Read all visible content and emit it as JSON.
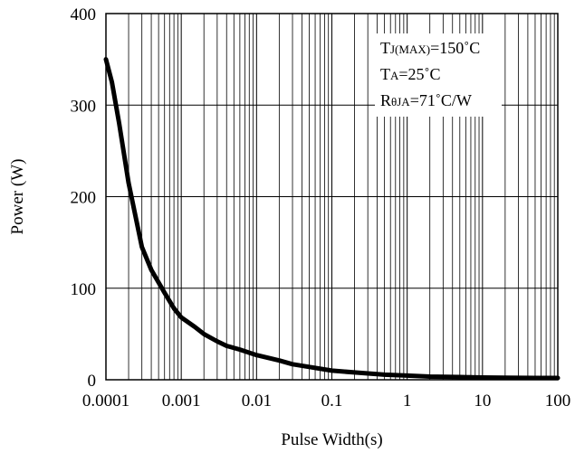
{
  "chart_data": {
    "type": "line",
    "title": "",
    "xlabel": "Pulse Width(s)",
    "ylabel": "Power (W)",
    "x_scale": "log",
    "xlim": [
      0.0001,
      100
    ],
    "ylim": [
      0,
      400
    ],
    "grid": true,
    "x_ticks": [
      "0.0001",
      "0.001",
      "0.01",
      "0.1",
      "1",
      "10",
      "100"
    ],
    "y_ticks": [
      "0",
      "100",
      "200",
      "300",
      "400"
    ],
    "annotation": {
      "lines": [
        {
          "main": "T",
          "sub": "J(MAX)",
          "rest": "=150˚C"
        },
        {
          "main": "T",
          "sub": "A",
          "rest": "=25˚C"
        },
        {
          "main": "R",
          "sub": "θJA",
          "rest": "=71˚C/W"
        }
      ]
    },
    "series": [
      {
        "x": [
          0.0001,
          0.00012,
          0.00015,
          0.0002,
          0.0003,
          0.0004,
          0.0006,
          0.0008,
          0.001,
          0.0015,
          0.002,
          0.003,
          0.004,
          0.006,
          0.01,
          0.02,
          0.03,
          0.05,
          0.1,
          0.2,
          0.5,
          1,
          2,
          5,
          10,
          20,
          50,
          100
        ],
        "y": [
          350,
          325,
          280,
          215,
          145,
          120,
          95,
          78,
          68,
          58,
          50,
          42,
          37,
          33,
          27,
          21,
          17,
          14,
          10,
          8,
          5.5,
          4.5,
          3.5,
          3,
          2.5,
          2.2,
          2,
          2
        ]
      }
    ]
  }
}
